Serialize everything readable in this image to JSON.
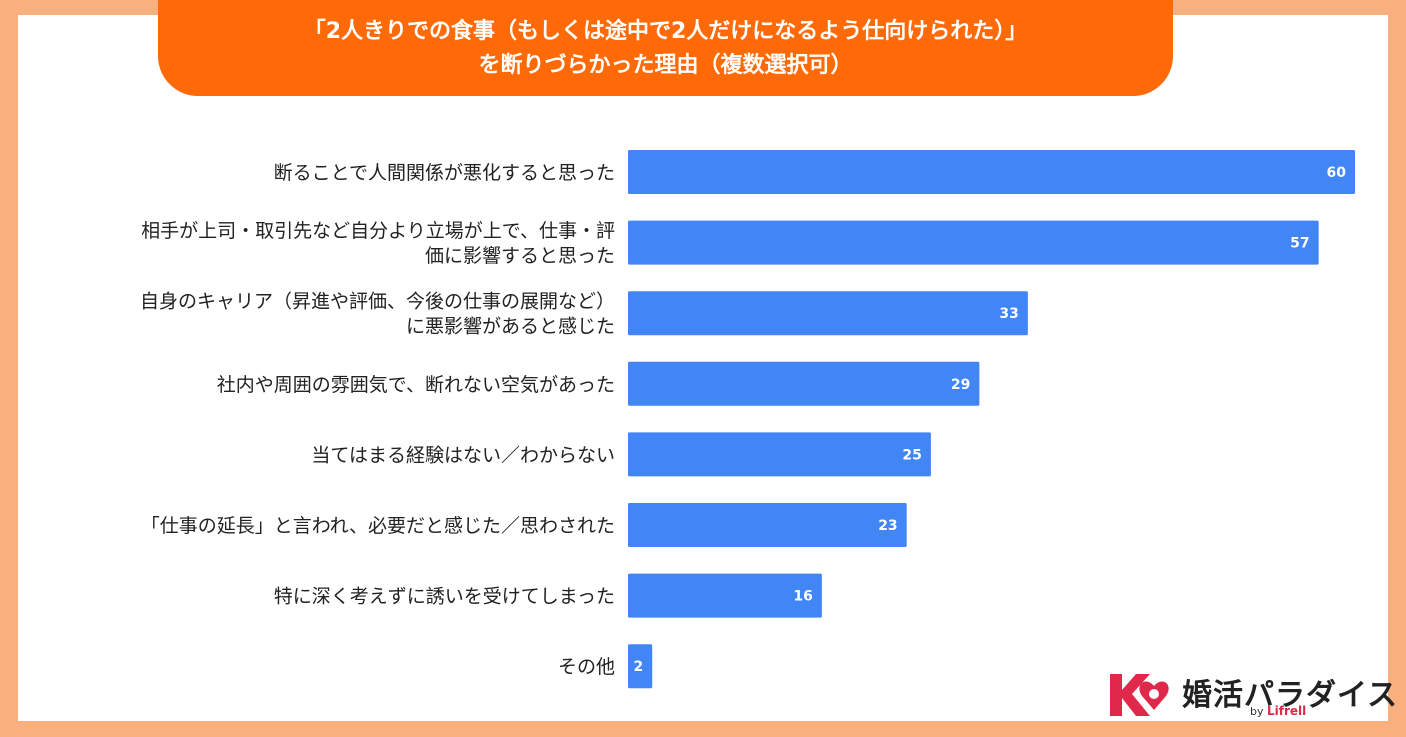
{
  "title": {
    "line1": "「2人きりでの食事（もしくは途中で2人だけになるよう仕向けられた）」",
    "line2": "を断りづらかった理由（複数選択可）"
  },
  "colors": {
    "background": "#f9b07e",
    "title_fill": "#ff6a09",
    "bar": "#4285f4",
    "logo_accent": "#e0294a"
  },
  "chart_data": {
    "type": "bar",
    "orientation": "horizontal",
    "categories": [
      [
        "断ることで人間関係が悪化すると思った"
      ],
      [
        "相手が上司・取引先など自分より立場が上で、仕事・評",
        "価に影響すると思った"
      ],
      [
        "自身のキャリア（昇進や評価、今後の仕事の展開など）",
        "に悪影響があると感じた"
      ],
      [
        "社内や周囲の雰囲気で、断れない空気があった"
      ],
      [
        "当てはまる経験はない／わからない"
      ],
      [
        "「仕事の延長」と言われ、必要だと感じた／思わされた"
      ],
      [
        "特に深く考えずに誘いを受けてしまった"
      ],
      [
        "その他"
      ]
    ],
    "values": [
      60,
      57,
      33,
      29,
      25,
      23,
      16,
      2
    ],
    "xlim": [
      0,
      60
    ],
    "grid": false,
    "legend": "none",
    "data_labels": true
  },
  "logo": {
    "name": "婚活パラダイス",
    "by": "by",
    "brand": "Lifrell"
  }
}
